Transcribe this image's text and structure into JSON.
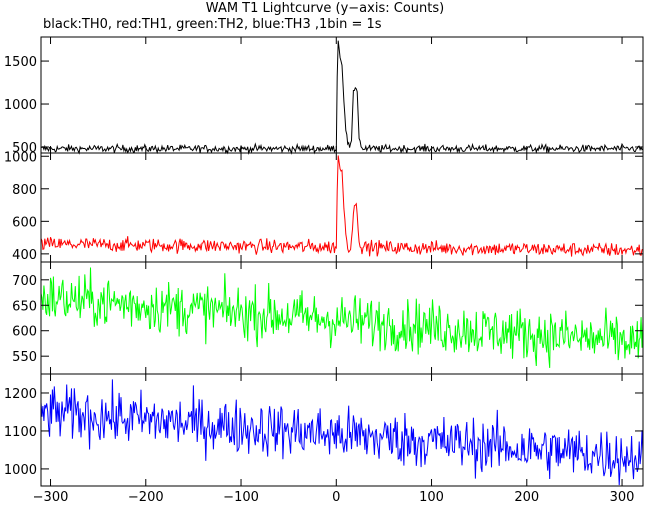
{
  "title": "WAM T1 Lightcurve (y−axis: Counts)",
  "subtitle": "black:TH0, red:TH1, green:TH2, blue:TH3 ,1bin = 1s",
  "chart_data": {
    "type": "line",
    "xlim": [
      -310,
      322
    ],
    "x_ticks": [
      "−300",
      "−200",
      "−100",
      "0",
      "100",
      "200",
      "300"
    ],
    "x_tick_values": [
      -300,
      -200,
      -100,
      0,
      100,
      200,
      300
    ],
    "x_step": 1,
    "panels": [
      {
        "name": "TH0",
        "color": "#000000",
        "ylim": [
          430,
          1780
        ],
        "y_ticks": [
          "500",
          "1000",
          "1500"
        ],
        "y_tick_values": [
          500,
          1000,
          1500
        ],
        "baseline": 480,
        "noise": 22,
        "trend": 0,
        "burst": [
          {
            "x": 0,
            "y": 480
          },
          {
            "x": 1,
            "y": 1300
          },
          {
            "x": 2,
            "y": 1760
          },
          {
            "x": 4,
            "y": 1550
          },
          {
            "x": 6,
            "y": 1450
          },
          {
            "x": 8,
            "y": 1050
          },
          {
            "x": 10,
            "y": 700
          },
          {
            "x": 12,
            "y": 550
          },
          {
            "x": 14,
            "y": 500
          },
          {
            "x": 16,
            "y": 560
          },
          {
            "x": 18,
            "y": 1150
          },
          {
            "x": 20,
            "y": 1200
          },
          {
            "x": 22,
            "y": 1150
          },
          {
            "x": 24,
            "y": 600
          },
          {
            "x": 27,
            "y": 480
          }
        ]
      },
      {
        "name": "TH1",
        "color": "#ff0000",
        "ylim": [
          350,
          1020
        ],
        "y_ticks": [
          "400",
          "600",
          "800",
          "1000"
        ],
        "y_tick_values": [
          400,
          600,
          800,
          1000
        ],
        "baseline": 460,
        "noise": 22,
        "trend": -0.06,
        "burst": [
          {
            "x": 0,
            "y": 440
          },
          {
            "x": 1,
            "y": 800
          },
          {
            "x": 2,
            "y": 1000
          },
          {
            "x": 4,
            "y": 920
          },
          {
            "x": 6,
            "y": 900
          },
          {
            "x": 8,
            "y": 700
          },
          {
            "x": 10,
            "y": 520
          },
          {
            "x": 12,
            "y": 440
          },
          {
            "x": 15,
            "y": 430
          },
          {
            "x": 18,
            "y": 640
          },
          {
            "x": 20,
            "y": 720
          },
          {
            "x": 22,
            "y": 650
          },
          {
            "x": 24,
            "y": 480
          },
          {
            "x": 27,
            "y": 430
          }
        ]
      },
      {
        "name": "TH2",
        "color": "#00ff00",
        "ylim": [
          515,
          735
        ],
        "y_ticks": [
          "550",
          "600",
          "650",
          "700"
        ],
        "y_tick_values": [
          550,
          600,
          650,
          700
        ],
        "baseline": 665,
        "noise": 26,
        "trend": -0.14,
        "burst": []
      },
      {
        "name": "TH3",
        "color": "#0000ff",
        "ylim": [
          955,
          1250
        ],
        "y_ticks": [
          "1000",
          "1100",
          "1200"
        ],
        "y_tick_values": [
          1000,
          1100,
          1200
        ],
        "baseline": 1150,
        "noise": 36,
        "trend": -0.19,
        "burst": []
      }
    ]
  }
}
